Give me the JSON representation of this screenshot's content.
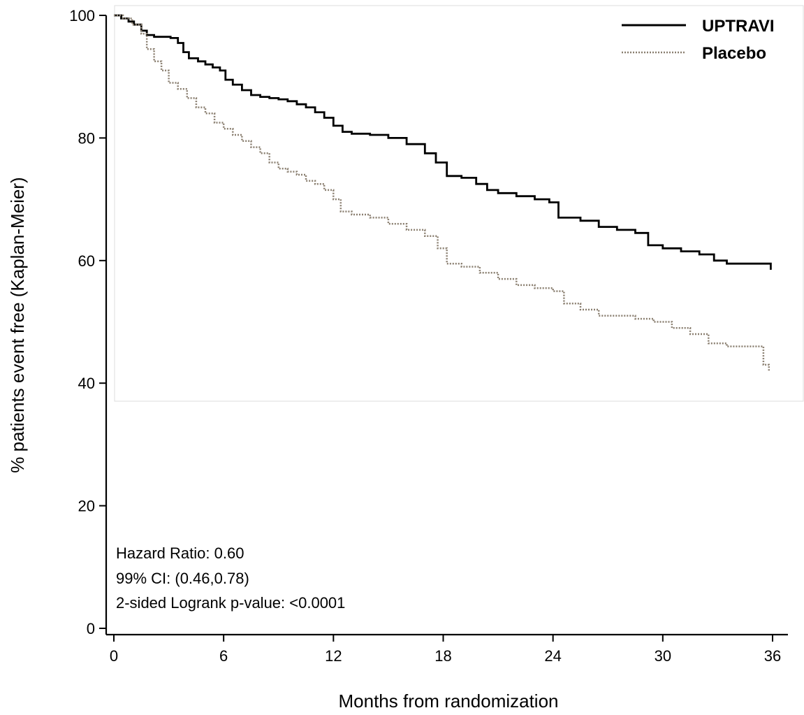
{
  "chart_data": {
    "type": "line",
    "step": true,
    "xlabel": "Months from randomization",
    "ylabel": "% patients event free (Kaplan-Meier)",
    "xlim": [
      0,
      36
    ],
    "ylim": [
      0,
      100
    ],
    "xticks": [
      0,
      6,
      12,
      18,
      24,
      30,
      36
    ],
    "yticks": [
      0,
      20,
      40,
      60,
      80,
      100
    ],
    "grid": false,
    "legend_position": "top-right",
    "annotations": [
      "Hazard Ratio: 0.60",
      "99% CI: (0.46,0.78)",
      "2-sided Logrank p-value: <0.0001"
    ],
    "series": [
      {
        "name": "UPTRAVI",
        "style": "solid",
        "color": "#000000",
        "x": [
          0,
          0.4,
          0.8,
          1.1,
          1.5,
          1.8,
          2.2,
          2.6,
          3.1,
          3.5,
          3.8,
          4.1,
          4.6,
          5.0,
          5.4,
          5.8,
          6.1,
          6.5,
          7.0,
          7.5,
          8.0,
          8.5,
          9.0,
          9.5,
          10.0,
          10.5,
          11.0,
          11.5,
          12.0,
          12.5,
          13.0,
          14.0,
          15.0,
          16.0,
          17.0,
          17.6,
          18.2,
          19.0,
          19.8,
          20.4,
          21.0,
          22.0,
          23.0,
          23.8,
          24.3,
          25.5,
          26.5,
          27.5,
          28.5,
          29.2,
          30.0,
          31.0,
          32.0,
          32.8,
          33.5,
          34.5,
          35.2,
          35.8,
          35.9
        ],
        "y": [
          100,
          99.5,
          99,
          98.5,
          97.5,
          96.8,
          96.5,
          96.5,
          96.3,
          95.5,
          94,
          93,
          92.5,
          92,
          91.5,
          91,
          89.5,
          88.7,
          87.8,
          87,
          86.7,
          86.5,
          86.3,
          86,
          85.5,
          85,
          84.2,
          83.3,
          82,
          81,
          80.7,
          80.5,
          80,
          79,
          77.5,
          76,
          73.8,
          73.5,
          72.5,
          71.5,
          71,
          70.5,
          70,
          69.5,
          67,
          66.5,
          65.5,
          65,
          64.5,
          62.5,
          62,
          61.5,
          61,
          60,
          59.5,
          59.5,
          59.5,
          59.5,
          58.5
        ]
      },
      {
        "name": "Placebo",
        "style": "dotted",
        "color": "#8a7f70",
        "x": [
          0,
          0.5,
          1.0,
          1.5,
          1.8,
          2.2,
          2.6,
          3.0,
          3.5,
          4.0,
          4.5,
          5.0,
          5.5,
          6.0,
          6.5,
          7.0,
          7.5,
          8.0,
          8.5,
          9.0,
          9.5,
          10.0,
          10.5,
          11.0,
          11.5,
          12.0,
          12.4,
          13.0,
          14.0,
          15.0,
          16.0,
          17.0,
          17.7,
          18.2,
          19.0,
          20.0,
          21.0,
          22.0,
          23.0,
          24.0,
          24.6,
          25.5,
          26.5,
          27.5,
          28.5,
          29.5,
          30.5,
          31.5,
          32.5,
          33.5,
          34.5,
          35.0,
          35.5,
          35.8
        ],
        "y": [
          100,
          99.5,
          98.5,
          97,
          94.5,
          92.5,
          91,
          89,
          88,
          86.5,
          85,
          84,
          82.5,
          81.5,
          80.5,
          79.5,
          78.5,
          77.5,
          76,
          75,
          74.5,
          74,
          73,
          72.5,
          71.5,
          70,
          68,
          67.5,
          67,
          66,
          65,
          64,
          62,
          59.5,
          59,
          58,
          57,
          56,
          55.5,
          55,
          53,
          52,
          51,
          51,
          50.5,
          50,
          49,
          48,
          46.5,
          46,
          46,
          46,
          43,
          42
        ]
      }
    ]
  }
}
